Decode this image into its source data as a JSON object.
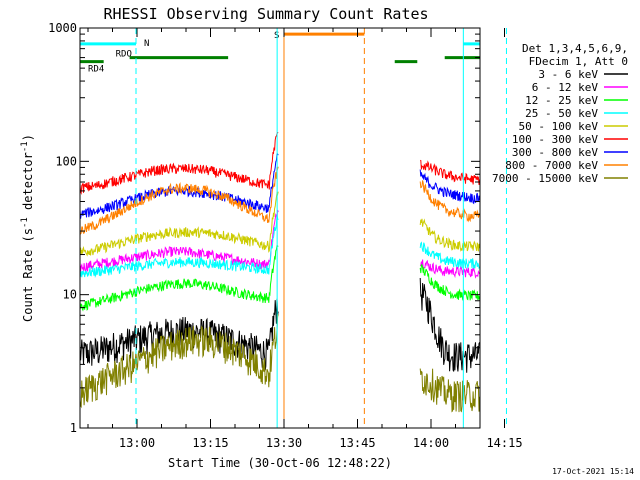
{
  "chart_data": {
    "type": "line",
    "title": "RHESSI Observing Summary Count Rates",
    "xlabel": "Start Time (30-Oct-06 12:48:22)",
    "ylabel_main": "Count Rate (s",
    "ylabel_sup1": "-1",
    "ylabel_mid": " detector",
    "ylabel_sup2": "-1",
    "ylabel_end": ")",
    "footer": "17-Oct-2021 15:14",
    "x_range_min": [
      48.37,
      130.0
    ],
    "ylim": [
      1,
      1000
    ],
    "y_scale": "log",
    "x_ticks": [
      {
        "v": 60,
        "label": "13:00"
      },
      {
        "v": 75,
        "label": "13:15"
      },
      {
        "v": 90,
        "label": "13:30"
      },
      {
        "v": 105,
        "label": "13:45"
      },
      {
        "v": 120,
        "label": "14:00"
      },
      {
        "v": 135,
        "label": "14:15"
      }
    ],
    "y_ticks": [
      {
        "v": 1,
        "label": "1"
      },
      {
        "v": 10,
        "label": "10"
      },
      {
        "v": 100,
        "label": "100"
      },
      {
        "v": 1000,
        "label": "1000"
      }
    ],
    "legend_header": [
      "Det 1,3,4,5,6,9,",
      "FDecim 1, Att 0"
    ],
    "legend_position": "right",
    "series": [
      {
        "name": "3 - 6 keV",
        "color": "#000000",
        "pre": [
          3.6,
          3.8,
          4.2,
          4.6,
          5.0,
          5.3,
          5.4,
          5.2,
          4.8,
          4.3,
          3.8,
          3.5
        ],
        "post": [
          10.5,
          9.0,
          6.8,
          5.0,
          4.0,
          3.6,
          3.5,
          3.5,
          3.5,
          3.5,
          3.5
        ]
      },
      {
        "name": "6 - 12 keV",
        "color": "#ff00ff",
        "pre": [
          16,
          17,
          18,
          19,
          20,
          21,
          21,
          20,
          19,
          18,
          17,
          17
        ],
        "post": [
          18,
          17,
          16,
          15.5,
          15,
          15,
          15,
          14.8,
          14.8,
          14.8,
          14.8
        ]
      },
      {
        "name": "12 - 25 keV",
        "color": "#00ff00",
        "pre": [
          8.2,
          8.8,
          9.6,
          10.5,
          11.3,
          12,
          12.2,
          11.8,
          11,
          10.2,
          9.6,
          9.2
        ],
        "post": [
          16,
          14.5,
          12.5,
          11.5,
          10.8,
          10.3,
          10,
          9.9,
          9.8,
          9.8,
          9.8
        ]
      },
      {
        "name": "25 - 50 keV",
        "color": "#00ffff",
        "pre": [
          14.5,
          15,
          15.6,
          16.3,
          17,
          17.5,
          17.6,
          17.3,
          16.8,
          16.2,
          15.6,
          15.2
        ],
        "post": [
          24,
          22,
          20,
          19,
          18,
          17.8,
          17.5,
          17.3,
          17.2,
          17.2,
          17.2
        ]
      },
      {
        "name": "50 - 100 keV",
        "color": "#cccc00",
        "pre": [
          21,
          22,
          24,
          26,
          28,
          29,
          29.5,
          29,
          28,
          26,
          24,
          22
        ],
        "post": [
          36,
          32,
          28,
          26,
          25,
          24,
          23.5,
          23,
          23,
          23,
          23
        ]
      },
      {
        "name": "100 - 300 keV",
        "color": "#ff0000",
        "pre": [
          63,
          66,
          72,
          78,
          85,
          88,
          88,
          86,
          80,
          74,
          68,
          65
        ],
        "post": [
          95,
          92,
          88,
          84,
          80,
          78,
          76,
          75,
          74,
          73,
          73
        ]
      },
      {
        "name": "300 - 800 keV",
        "color": "#0000ff",
        "pre": [
          40,
          43,
          47,
          52,
          57,
          60,
          60,
          58,
          54,
          50,
          46,
          43
        ],
        "post": [
          80,
          72,
          66,
          62,
          59,
          57,
          56,
          55,
          54,
          53,
          53
        ]
      },
      {
        "name": "800 - 7000 keV",
        "color": "#ff8000",
        "pre": [
          30,
          34,
          40,
          48,
          56,
          62,
          63,
          60,
          54,
          46,
          39,
          34
        ],
        "post": [
          70,
          60,
          52,
          47,
          44,
          42,
          41,
          40,
          39,
          39,
          39
        ]
      },
      {
        "name": "7000 - 15000 keV",
        "color": "#808000",
        "pre": [
          1.8,
          2.2,
          2.6,
          3.0,
          3.6,
          4.2,
          4.6,
          4.6,
          4.2,
          3.6,
          2.9,
          2.2
        ],
        "post": [
          2.5,
          2.3,
          2.2,
          2.0,
          1.9,
          1.8,
          1.8,
          1.8,
          1.8,
          1.8,
          1.8
        ]
      }
    ],
    "bands": [
      {
        "label": "N",
        "color": "#00ffff",
        "level": 760,
        "segments": [
          [
            48.37,
            59.8
          ],
          [
            126.6,
            130.0
          ]
        ]
      },
      {
        "label": "S",
        "color": "#ff8000",
        "level": 900,
        "segments": [
          [
            90.0,
            106.4
          ]
        ]
      },
      {
        "label": "RDO",
        "color": "#008000",
        "level": 600,
        "segments": [
          [
            58.5,
            78.6
          ],
          [
            122.8,
            130.0
          ]
        ]
      },
      {
        "label": "RD4",
        "color": "#008000",
        "level": 560,
        "segments": [
          [
            48.37,
            53.2
          ],
          [
            112.6,
            117.2
          ]
        ]
      }
    ],
    "vlines": [
      {
        "x": 59.8,
        "color": "#00ffff",
        "style": "dashed"
      },
      {
        "x": 88.6,
        "color": "#00ffff",
        "style": "solid"
      },
      {
        "x": 90.0,
        "color": "#ff8000",
        "style": "solid"
      },
      {
        "x": 106.4,
        "color": "#ff8000",
        "style": "dashed"
      },
      {
        "x": 126.6,
        "color": "#00ffff",
        "style": "solid"
      },
      {
        "x": 135.4,
        "color": "#00ffff",
        "style": "dashed"
      }
    ],
    "data_gap": [
      89.0,
      117.6
    ],
    "night_start": 59.8,
    "night_end": 126.6
  }
}
